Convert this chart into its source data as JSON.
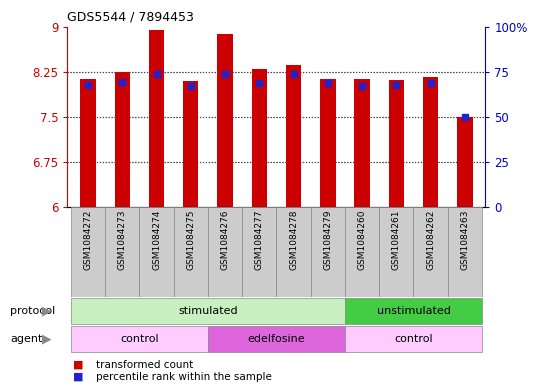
{
  "title": "GDS5544 / 7894453",
  "samples": [
    "GSM1084272",
    "GSM1084273",
    "GSM1084274",
    "GSM1084275",
    "GSM1084276",
    "GSM1084277",
    "GSM1084278",
    "GSM1084279",
    "GSM1084260",
    "GSM1084261",
    "GSM1084262",
    "GSM1084263"
  ],
  "bar_values": [
    8.13,
    8.25,
    8.95,
    8.1,
    8.88,
    8.3,
    8.37,
    8.13,
    8.13,
    8.12,
    8.17,
    7.5
  ],
  "percentile_values": [
    8.04,
    8.09,
    8.21,
    8.02,
    8.21,
    8.06,
    8.21,
    8.06,
    8.02,
    8.04,
    8.07,
    7.5
  ],
  "bar_color": "#cc0000",
  "pct_color": "#2222cc",
  "ylim_left": [
    6,
    9
  ],
  "ylim_right": [
    0,
    100
  ],
  "yticks_left": [
    6,
    6.75,
    7.5,
    8.25,
    9
  ],
  "ytick_labels_left": [
    "6",
    "6.75",
    "7.5",
    "8.25",
    "9"
  ],
  "yticks_right": [
    0,
    25,
    50,
    75,
    100
  ],
  "ytick_labels_right": [
    "0",
    "25",
    "50",
    "75",
    "100%"
  ],
  "protocol_groups": [
    {
      "label": "stimulated",
      "start": 0,
      "end": 8,
      "color": "#c8f0c8"
    },
    {
      "label": "unstimulated",
      "start": 8,
      "end": 12,
      "color": "#44cc44"
    }
  ],
  "agent_groups": [
    {
      "label": "control",
      "start": 0,
      "end": 4,
      "color": "#ffccff"
    },
    {
      "label": "edelfosine",
      "start": 4,
      "end": 8,
      "color": "#dd66dd"
    },
    {
      "label": "control",
      "start": 8,
      "end": 12,
      "color": "#ffccff"
    }
  ],
  "legend_bar_label": "transformed count",
  "legend_pct_label": "percentile rank within the sample",
  "bar_width": 0.45,
  "bg_color": "#ffffff",
  "left_color": "#cc0000",
  "right_color": "#0000cc"
}
